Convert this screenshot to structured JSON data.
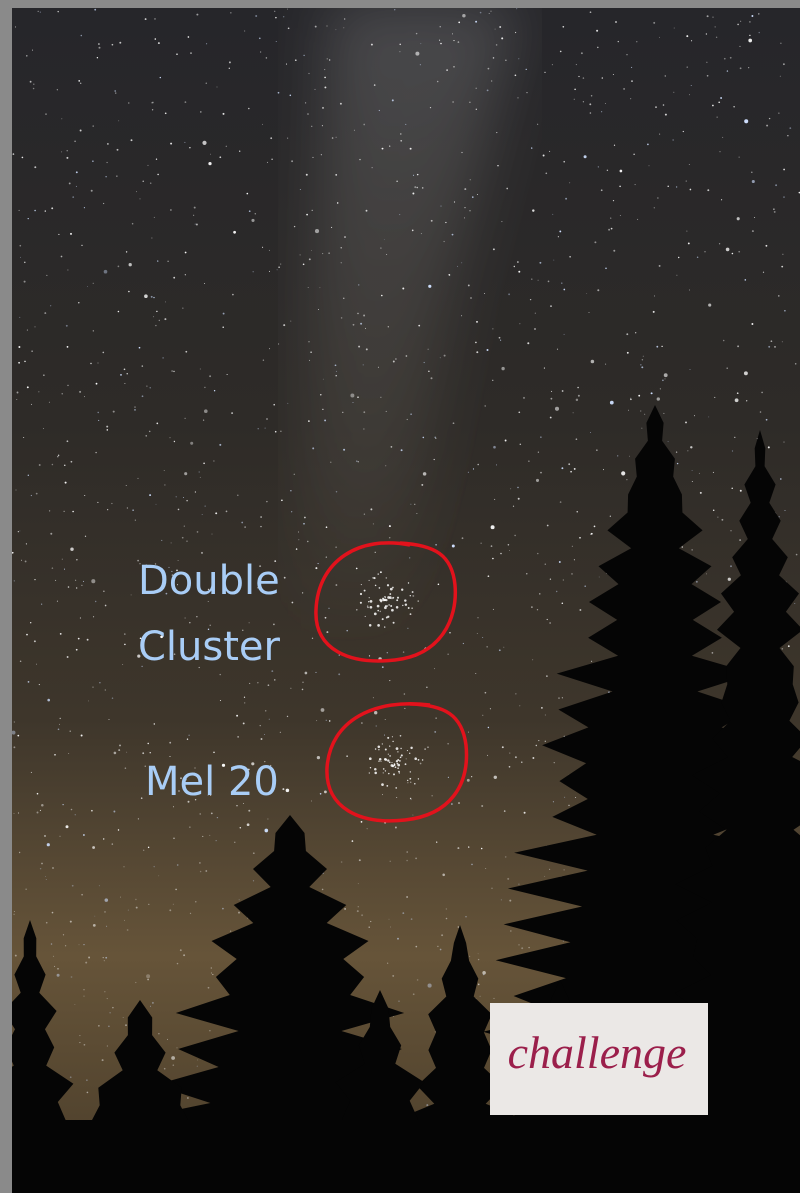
{
  "labels": [
    "Double",
    "Cluster",
    "Mel 20"
  ],
  "badge": "challenge"
}
